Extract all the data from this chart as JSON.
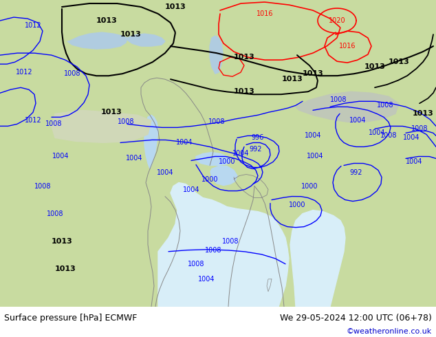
{
  "title_left": "Surface pressure [hPa] ECMWF",
  "title_right": "We 29-05-2024 12:00 UTC (06+78)",
  "copyright": "©weatheronline.co.uk",
  "land_color": "#c8dba0",
  "ocean_color": "#d8eef8",
  "gray_land_color": "#c0c8b8",
  "fig_width": 6.34,
  "fig_height": 4.9,
  "dpi": 100,
  "copyright_color": "#0000cc",
  "black_isobar_color": "#000000",
  "blue_isobar_color": "#0000ff",
  "red_isobar_color": "#ff0000",
  "coast_color": "#888888",
  "border_color": "#aaaaaa"
}
